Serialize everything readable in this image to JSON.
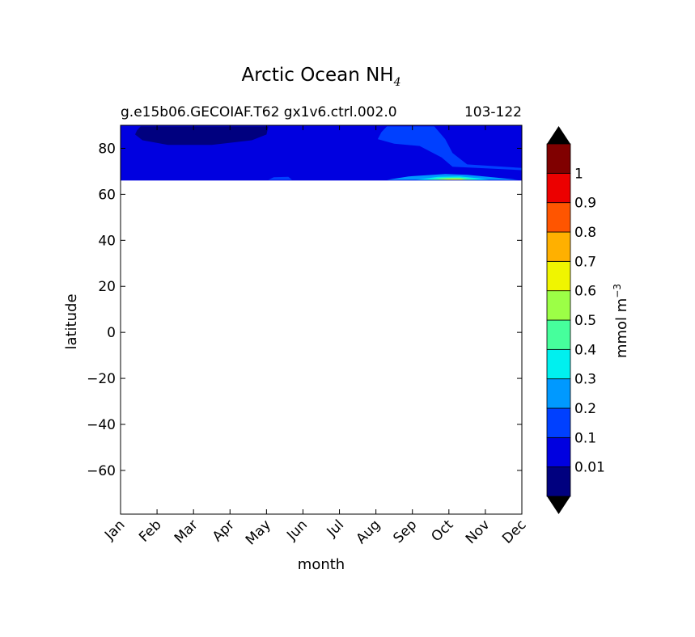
{
  "chart_data": {
    "type": "heatmap",
    "title": "Arctic Ocean NH",
    "title_subscript": "4",
    "subtitle_left": "g.e15b06.GECOIAF.T62 gx1v6.ctrl.002.0",
    "subtitle_right": "103-122",
    "xlabel": "month",
    "ylabel": "latitude",
    "x_ticks": [
      "Jan",
      "Feb",
      "Mar",
      "Apr",
      "May",
      "Jun",
      "Jul",
      "Aug",
      "Sep",
      "Oct",
      "Nov",
      "Dec"
    ],
    "y_ticks": [
      "80",
      "60",
      "40",
      "20",
      "0",
      "−20",
      "−40",
      "−60"
    ],
    "y_tick_values": [
      80,
      60,
      40,
      20,
      0,
      -20,
      -40,
      -60
    ],
    "xlim": [
      1,
      12
    ],
    "ylim": [
      -79,
      90
    ],
    "data_lat_range": [
      66,
      90
    ],
    "colorbar": {
      "label": "mmol m",
      "label_superscript": "−3",
      "extend": "both",
      "levels": [
        0,
        0.01,
        0.1,
        0.2,
        0.3,
        0.4,
        0.5,
        0.6,
        0.7,
        0.8,
        0.9,
        1,
        1.1
      ],
      "tick_labels": [
        "0.01",
        "0.1",
        "0.2",
        "0.3",
        "0.4",
        "0.5",
        "0.6",
        "0.7",
        "0.8",
        "0.9",
        "1"
      ],
      "tick_values": [
        0.01,
        0.1,
        0.2,
        0.3,
        0.4,
        0.5,
        0.6,
        0.7,
        0.8,
        0.9,
        1
      ],
      "colors": [
        "#00007f",
        "#0000e0",
        "#0040ff",
        "#0099ff",
        "#00f0ef",
        "#46ff9c",
        "#9cff46",
        "#f0f500",
        "#ffb000",
        "#ff5500",
        "#ec0000",
        "#800000"
      ],
      "under_color": "#000000",
      "over_color": "#000000"
    },
    "background_color": "#0000e0",
    "regions": [
      {
        "name": "low-band",
        "level_color": "#00007f",
        "polygon": [
          [
            1.45,
            87.8
          ],
          [
            1.55,
            89.5
          ],
          [
            5.05,
            89.5
          ],
          [
            5.0,
            86.0
          ],
          [
            4.6,
            83.5
          ],
          [
            3.5,
            81.5
          ],
          [
            2.3,
            81.5
          ],
          [
            1.6,
            83.5
          ],
          [
            1.4,
            86.0
          ]
        ]
      },
      {
        "name": "mid-band",
        "level_color": "#0040ff",
        "polygon": [
          [
            12,
            70.5
          ],
          [
            10.1,
            72
          ],
          [
            9.8,
            76
          ],
          [
            9.2,
            81
          ],
          [
            8.5,
            82
          ],
          [
            8.05,
            84
          ],
          [
            8.15,
            87
          ],
          [
            8.3,
            89.5
          ],
          [
            9.6,
            89.5
          ],
          [
            9.9,
            84
          ],
          [
            10.1,
            78
          ],
          [
            10.5,
            73
          ],
          [
            12,
            71.5
          ]
        ]
      },
      {
        "name": "mid-band-edge",
        "level_color": "#0040ff",
        "polygon": [
          [
            5.05,
            66.3
          ],
          [
            5.2,
            67.4
          ],
          [
            5.6,
            67.6
          ],
          [
            5.7,
            66.3
          ]
        ]
      },
      {
        "name": "band-02",
        "level_color": "#0099ff",
        "polygon": [
          [
            8.3,
            66.3
          ],
          [
            8.9,
            67.8
          ],
          [
            9.9,
            68.8
          ],
          [
            10.5,
            68.5
          ],
          [
            11.2,
            67.4
          ],
          [
            11.9,
            66.3
          ]
        ]
      },
      {
        "name": "band-03",
        "level_color": "#00f0ef",
        "polygon": [
          [
            9.1,
            66.3
          ],
          [
            9.7,
            67.6
          ],
          [
            10.3,
            67.8
          ],
          [
            10.8,
            67.0
          ],
          [
            11.1,
            66.3
          ]
        ]
      },
      {
        "name": "band-04",
        "level_color": "#46ff9c",
        "polygon": [
          [
            9.4,
            66.3
          ],
          [
            9.8,
            67.2
          ],
          [
            10.3,
            67.3
          ],
          [
            10.6,
            66.7
          ],
          [
            10.8,
            66.3
          ]
        ]
      },
      {
        "name": "band-05",
        "level_color": "#9cff46",
        "polygon": [
          [
            9.7,
            66.3
          ],
          [
            9.95,
            66.9
          ],
          [
            10.3,
            66.9
          ],
          [
            10.5,
            66.3
          ]
        ]
      },
      {
        "name": "band-06",
        "level_color": "#f0f500",
        "polygon": [
          [
            9.9,
            66.3
          ],
          [
            10.1,
            66.65
          ],
          [
            10.35,
            66.5
          ],
          [
            10.4,
            66.3
          ]
        ]
      }
    ]
  }
}
